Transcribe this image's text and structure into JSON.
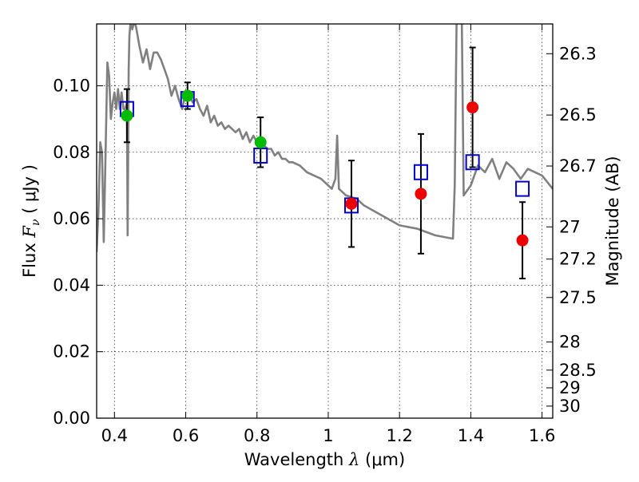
{
  "chart_data": {
    "type": "scatter",
    "xlabel": "Wavelength",
    "xlabel_symbol": "λ",
    "xlabel_unit": "(μm)",
    "ylabel": "Flux",
    "ylabel_symbol": "F",
    "ylabel_subscript": "ν",
    "ylabel_unit": "( μJy )",
    "y2label": "Magnitude (AB)",
    "xlim": [
      0.35,
      1.63
    ],
    "ylim": [
      0.0,
      0.1186
    ],
    "grid": true,
    "x_ticks": [
      {
        "value": 0.4,
        "label": "0.4"
      },
      {
        "value": 0.6,
        "label": "0.6"
      },
      {
        "value": 0.8,
        "label": "0.8"
      },
      {
        "value": 1.0,
        "label": "1"
      },
      {
        "value": 1.2,
        "label": "1.2"
      },
      {
        "value": 1.4,
        "label": "1.4"
      },
      {
        "value": 1.6,
        "label": "1.6"
      }
    ],
    "y_ticks": [
      {
        "value": 0.0,
        "label": "0.00"
      },
      {
        "value": 0.02,
        "label": "0.02"
      },
      {
        "value": 0.04,
        "label": "0.04"
      },
      {
        "value": 0.06,
        "label": "0.06"
      },
      {
        "value": 0.08,
        "label": "0.08"
      },
      {
        "value": 0.1,
        "label": "0.10"
      }
    ],
    "mag_ticks": [
      {
        "value": 26.3,
        "label": "26.3"
      },
      {
        "value": 26.5,
        "label": "26.5"
      },
      {
        "value": 26.7,
        "label": "26.7"
      },
      {
        "value": 27.0,
        "label": "27"
      },
      {
        "value": 27.2,
        "label": "27.2"
      },
      {
        "value": 27.5,
        "label": "27.5"
      },
      {
        "value": 28.0,
        "label": "28"
      },
      {
        "value": 28.5,
        "label": "28.5"
      },
      {
        "value": 29.0,
        "label": "29"
      },
      {
        "value": 30.0,
        "label": "30"
      }
    ],
    "mag_zero_point": 23.9,
    "series": [
      {
        "role": "model-spectrum",
        "type": "line",
        "color": "#808080",
        "x": [
          0.35,
          0.355,
          0.36,
          0.365,
          0.37,
          0.375,
          0.38,
          0.385,
          0.39,
          0.395,
          0.4,
          0.405,
          0.41,
          0.415,
          0.42,
          0.425,
          0.43,
          0.435,
          0.437,
          0.44,
          0.442,
          0.445,
          0.45,
          0.455,
          0.46,
          0.47,
          0.48,
          0.49,
          0.5,
          0.51,
          0.52,
          0.53,
          0.54,
          0.55,
          0.56,
          0.57,
          0.58,
          0.59,
          0.6,
          0.61,
          0.62,
          0.63,
          0.64,
          0.65,
          0.66,
          0.67,
          0.68,
          0.69,
          0.7,
          0.71,
          0.72,
          0.73,
          0.74,
          0.75,
          0.76,
          0.77,
          0.78,
          0.79,
          0.8,
          0.81,
          0.82,
          0.83,
          0.84,
          0.85,
          0.86,
          0.87,
          0.88,
          0.89,
          0.9,
          0.92,
          0.94,
          0.96,
          0.98,
          1.0,
          1.01,
          1.02,
          1.025,
          1.03,
          1.05,
          1.08,
          1.1,
          1.15,
          1.2,
          1.25,
          1.3,
          1.35,
          1.355,
          1.36,
          1.365,
          1.37,
          1.375,
          1.38,
          1.4,
          1.42,
          1.44,
          1.46,
          1.48,
          1.5,
          1.52,
          1.54,
          1.56,
          1.58,
          1.6,
          1.63
        ],
        "y": [
          0.05,
          0.062,
          0.083,
          0.08,
          0.053,
          0.08,
          0.107,
          0.103,
          0.09,
          0.095,
          0.098,
          0.093,
          0.099,
          0.093,
          0.098,
          0.093,
          0.093,
          0.095,
          0.055,
          0.105,
          0.115,
          0.119,
          0.117,
          0.119,
          0.118,
          0.112,
          0.107,
          0.111,
          0.105,
          0.11,
          0.11,
          0.108,
          0.105,
          0.102,
          0.097,
          0.1,
          0.096,
          0.093,
          0.098,
          0.097,
          0.095,
          0.096,
          0.093,
          0.091,
          0.094,
          0.089,
          0.091,
          0.088,
          0.089,
          0.087,
          0.088,
          0.087,
          0.086,
          0.087,
          0.084,
          0.086,
          0.083,
          0.085,
          0.083,
          0.083,
          0.082,
          0.081,
          0.081,
          0.079,
          0.08,
          0.078,
          0.078,
          0.077,
          0.077,
          0.076,
          0.074,
          0.073,
          0.072,
          0.07,
          0.069,
          0.072,
          0.085,
          0.069,
          0.067,
          0.066,
          0.064,
          0.061,
          0.058,
          0.057,
          0.055,
          0.054,
          0.07,
          0.119,
          0.119,
          0.119,
          0.119,
          0.067,
          0.07,
          0.076,
          0.074,
          0.078,
          0.072,
          0.077,
          0.075,
          0.072,
          0.075,
          0.074,
          0.073,
          0.069
        ]
      },
      {
        "role": "model-photometry",
        "type": "scatter",
        "marker": "open-square",
        "color": "#0000cc",
        "x": [
          0.435,
          0.605,
          0.81,
          1.065,
          1.26,
          1.405,
          1.545
        ],
        "y": [
          0.093,
          0.096,
          0.079,
          0.064,
          0.074,
          0.077,
          0.069
        ]
      },
      {
        "role": "observed-photometry-optical",
        "type": "scatter",
        "marker": "filled-circle",
        "color": "#00bb00",
        "x": [
          0.435,
          0.605,
          0.81
        ],
        "y": [
          0.091,
          0.097,
          0.083
        ],
        "yerr": [
          0.008,
          0.004,
          0.0075
        ]
      },
      {
        "role": "observed-photometry-infrared",
        "type": "scatter",
        "marker": "filled-circle",
        "color": "#ee0000",
        "x": [
          1.065,
          1.26,
          1.405,
          1.545
        ],
        "y": [
          0.0645,
          0.0675,
          0.0935,
          0.0535
        ],
        "yerr": [
          0.013,
          0.018,
          0.018,
          0.0115
        ]
      }
    ]
  }
}
